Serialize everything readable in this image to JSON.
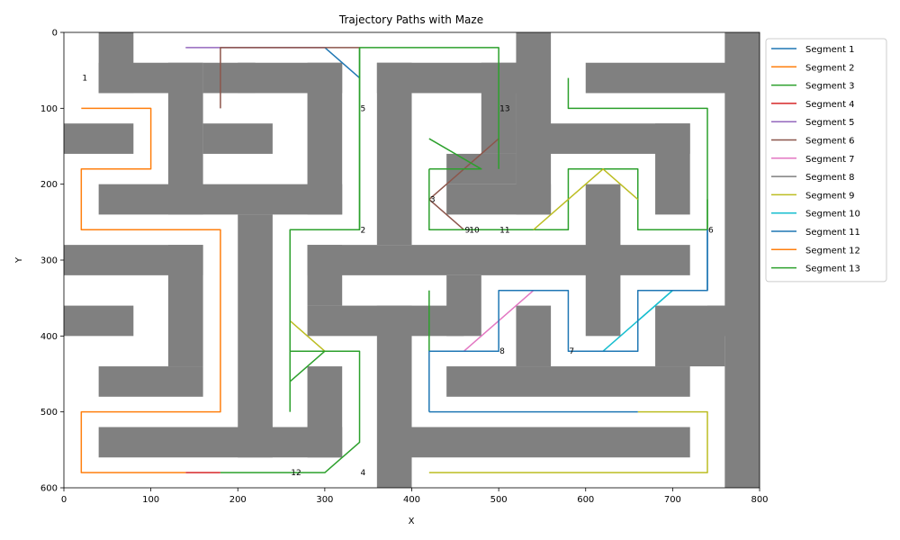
{
  "chart_data": {
    "type": "line",
    "title": "Trajectory Paths with Maze",
    "xlabel": "X",
    "ylabel": "Y",
    "xlim": [
      0,
      800
    ],
    "ylim": [
      600,
      0
    ],
    "y_inverted": true,
    "xticks": [
      0,
      100,
      200,
      300,
      400,
      500,
      600,
      700,
      800
    ],
    "yticks": [
      0,
      100,
      200,
      300,
      400,
      500,
      600
    ],
    "grid": false,
    "legend_placement": "outside-right-top",
    "maze_color": "#808080",
    "maze_walls": [
      [
        40,
        0,
        40,
        80
      ],
      [
        40,
        40,
        120,
        40
      ],
      [
        120,
        40,
        40,
        200
      ],
      [
        160,
        40,
        60,
        40
      ],
      [
        0,
        120,
        80,
        40
      ],
      [
        160,
        120,
        80,
        40
      ],
      [
        40,
        200,
        280,
        40
      ],
      [
        200,
        40,
        120,
        40
      ],
      [
        280,
        40,
        40,
        200
      ],
      [
        0,
        280,
        160,
        40
      ],
      [
        120,
        280,
        40,
        160
      ],
      [
        0,
        360,
        80,
        40
      ],
      [
        40,
        440,
        120,
        40
      ],
      [
        200,
        240,
        40,
        320
      ],
      [
        40,
        520,
        280,
        40
      ],
      [
        280,
        440,
        40,
        120
      ],
      [
        280,
        280,
        440,
        40
      ],
      [
        280,
        280,
        40,
        80
      ],
      [
        280,
        360,
        180,
        40
      ],
      [
        360,
        360,
        40,
        240
      ],
      [
        360,
        40,
        40,
        240
      ],
      [
        360,
        40,
        180,
        40
      ],
      [
        480,
        40,
        40,
        120
      ],
      [
        440,
        160,
        80,
        40
      ],
      [
        440,
        200,
        120,
        40
      ],
      [
        520,
        0,
        40,
        240
      ],
      [
        520,
        120,
        200,
        40
      ],
      [
        680,
        120,
        40,
        120
      ],
      [
        600,
        40,
        200,
        40
      ],
      [
        760,
        0,
        40,
        600
      ],
      [
        600,
        200,
        40,
        200
      ],
      [
        440,
        320,
        40,
        80
      ],
      [
        520,
        360,
        40,
        80
      ],
      [
        440,
        440,
        280,
        40
      ],
      [
        680,
        360,
        80,
        80
      ],
      [
        740,
        360,
        60,
        40
      ],
      [
        400,
        520,
        320,
        40
      ]
    ],
    "series": [
      {
        "name": "Segment 1",
        "color": "#1f77b4",
        "x": [
          300,
          340
        ],
        "y": [
          20,
          60
        ]
      },
      {
        "name": "Segment 2",
        "color": "#ff7f0e",
        "x": [
          20,
          100,
          100,
          20,
          20,
          180,
          180,
          140
        ],
        "y": [
          100,
          100,
          180,
          180,
          260,
          260,
          260,
          260
        ]
      },
      {
        "name": "Segment 3",
        "color": "#2ca02c",
        "x": [
          340,
          340,
          500,
          500
        ],
        "y": [
          260,
          20,
          20,
          180
        ]
      },
      {
        "name": "Segment 4",
        "color": "#d62728",
        "x": [
          140,
          180
        ],
        "y": [
          580,
          580
        ]
      },
      {
        "name": "Segment 5",
        "color": "#9467bd",
        "x": [
          140,
          300
        ],
        "y": [
          20,
          20
        ]
      },
      {
        "name": "Segment 6",
        "color": "#8c564b",
        "x": [
          180,
          180,
          180,
          340
        ],
        "y": [
          100,
          20,
          20,
          20
        ]
      },
      {
        "name": "Segment 7",
        "color": "#e377c2",
        "x": [
          460,
          540
        ],
        "y": [
          420,
          340
        ]
      },
      {
        "name": "Segment 8",
        "color": "#7f7f7f",
        "x": [],
        "y": []
      },
      {
        "name": "Segment 9",
        "color": "#bcbd22",
        "x": [
          260,
          300,
          260
        ],
        "y": [
          380,
          420,
          420
        ]
      },
      {
        "name": "Segment 10",
        "color": "#17becf",
        "x": [
          620,
          700
        ],
        "y": [
          420,
          340
        ]
      },
      {
        "name": "Segment 11",
        "color": "#1f77b4",
        "x": [
          420,
          420,
          500,
          500,
          580,
          580,
          660,
          660,
          740,
          740
        ],
        "y": [
          500,
          420,
          420,
          340,
          340,
          420,
          420,
          340,
          340,
          260
        ]
      },
      {
        "name": "Segment 12",
        "color": "#ff7f0e",
        "x": [
          180,
          180,
          20,
          20,
          140
        ],
        "y": [
          260,
          500,
          500,
          580,
          580
        ]
      },
      {
        "name": "Segment 13",
        "color": "#2ca02c",
        "x": [
          180,
          300,
          340,
          340,
          260,
          260,
          340,
          340
        ],
        "y": [
          580,
          580,
          540,
          420,
          420,
          260,
          260,
          20
        ]
      }
    ],
    "extra_paths": [
      {
        "color": "#8c564b",
        "x": [
          420,
          460
        ],
        "y": [
          220,
          260
        ]
      },
      {
        "color": "#8c564b",
        "x": [
          420,
          500
        ],
        "y": [
          220,
          140
        ]
      },
      {
        "color": "#2ca02c",
        "x": [
          420,
          480,
          420
        ],
        "y": [
          140,
          180,
          180
        ]
      },
      {
        "color": "#2ca02c",
        "x": [
          420,
          420,
          580,
          580,
          660,
          660,
          740,
          740
        ],
        "y": [
          180,
          260,
          260,
          180,
          180,
          260,
          260,
          220
        ]
      },
      {
        "color": "#2ca02c",
        "x": [
          420,
          420
        ],
        "y": [
          340,
          420
        ]
      },
      {
        "color": "#2ca02c",
        "x": [
          580,
          580,
          740,
          740
        ],
        "y": [
          60,
          100,
          100,
          260
        ]
      },
      {
        "color": "#2ca02c",
        "x": [
          260,
          260
        ],
        "y": [
          420,
          500
        ]
      },
      {
        "color": "#2ca02c",
        "x": [
          260,
          300
        ],
        "y": [
          460,
          420
        ]
      },
      {
        "color": "#bcbd22",
        "x": [
          540,
          620,
          660
        ],
        "y": [
          260,
          180,
          220
        ]
      },
      {
        "color": "#bcbd22",
        "x": [
          420,
          740,
          740,
          660
        ],
        "y": [
          580,
          580,
          500,
          500
        ]
      },
      {
        "color": "#1f77b4",
        "x": [
          420,
          660
        ],
        "y": [
          500,
          500
        ]
      },
      {
        "color": "#1f77b4",
        "x": [
          740,
          740
        ],
        "y": [
          340,
          260
        ]
      },
      {
        "color": "#17becf",
        "x": [
          660,
          700
        ],
        "y": [
          380,
          340
        ]
      }
    ],
    "annotations": [
      {
        "text": "1",
        "x": 20,
        "y": 60
      },
      {
        "text": "5",
        "x": 340,
        "y": 100
      },
      {
        "text": "13",
        "x": 500,
        "y": 100
      },
      {
        "text": "3",
        "x": 420,
        "y": 220
      },
      {
        "text": "2",
        "x": 340,
        "y": 260
      },
      {
        "text": "9",
        "x": 460,
        "y": 260
      },
      {
        "text": "10",
        "x": 465,
        "y": 260
      },
      {
        "text": "11",
        "x": 500,
        "y": 260
      },
      {
        "text": "6",
        "x": 740,
        "y": 260
      },
      {
        "text": "8",
        "x": 500,
        "y": 420
      },
      {
        "text": "7",
        "x": 580,
        "y": 420
      },
      {
        "text": "12",
        "x": 260,
        "y": 580
      },
      {
        "text": "4",
        "x": 340,
        "y": 580
      }
    ]
  }
}
